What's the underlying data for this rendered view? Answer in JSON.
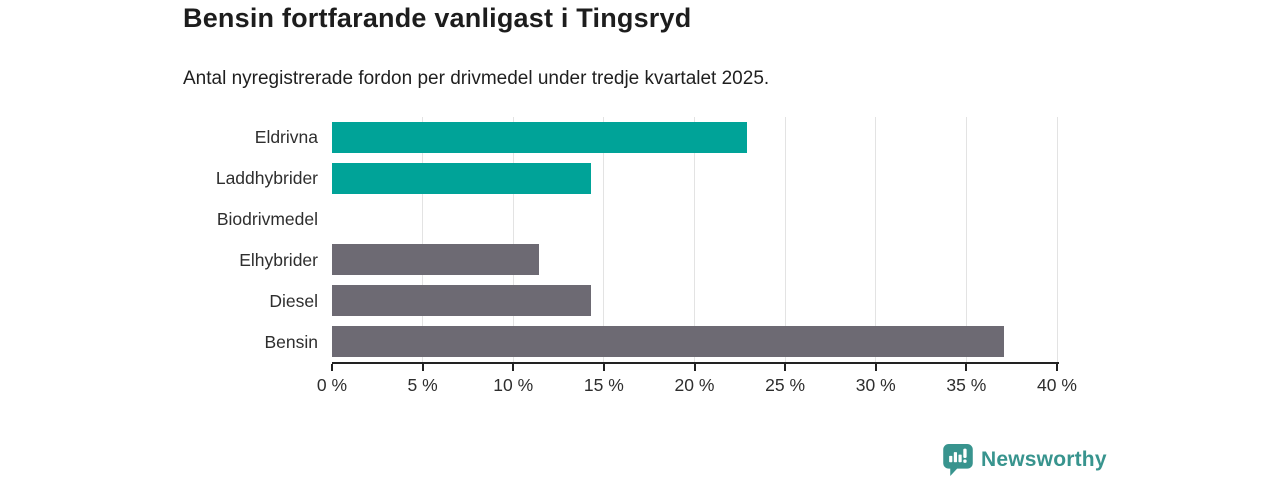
{
  "header": {
    "title": "Bensin fortfarande vanligast i Tingsryd",
    "subtitle": "Antal nyregistrerade fordon per drivmedel under tredje kvartalet 2025."
  },
  "chart_data": {
    "type": "bar",
    "orientation": "horizontal",
    "title": "Bensin fortfarande vanligast i Tingsryd",
    "subtitle": "Antal nyregistrerade fordon per drivmedel under tredje kvartalet 2025.",
    "categories": [
      "Eldrivna",
      "Laddhybrider",
      "Biodrivmedel",
      "Elhybrider",
      "Diesel",
      "Bensin"
    ],
    "values": [
      22.9,
      14.3,
      0,
      11.4,
      14.3,
      37.1
    ],
    "unit": "%",
    "xlabel": "",
    "ylabel": "",
    "xlim": [
      0,
      40
    ],
    "x_ticks": [
      0,
      5,
      10,
      15,
      20,
      25,
      30,
      35,
      40
    ],
    "x_tick_labels": [
      "0 %",
      "5 %",
      "10 %",
      "15 %",
      "20 %",
      "25 %",
      "30 %",
      "35 %",
      "40 %"
    ],
    "bar_colors": [
      "#00a398",
      "#00a398",
      "#00a398",
      "#6d6a73",
      "#6d6a73",
      "#6d6a73"
    ],
    "grid": true,
    "legend": false
  },
  "footer": {
    "brand": "Newsworthy"
  },
  "colors": {
    "accent_teal": "#00a398",
    "neutral_gray": "#6d6a73",
    "brand_teal": "#38948e",
    "axis": "#222222",
    "gridline": "#e3e3e3",
    "tick_text": "#2e2e2e",
    "heading_text": "#1d1d1d"
  }
}
